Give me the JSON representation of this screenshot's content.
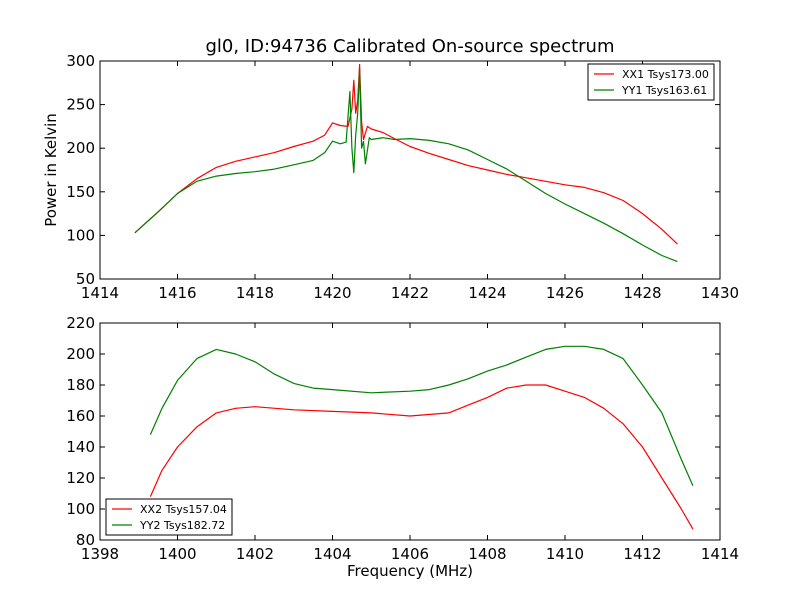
{
  "figure": {
    "title": "gl0, ID:94736 Calibrated On-source spectrum"
  },
  "chart_data": [
    {
      "type": "line",
      "ylabel": "Power in Kelvin",
      "xlabel": "",
      "xlim": [
        1414,
        1430
      ],
      "ylim": [
        50,
        300
      ],
      "xticks": [
        1414,
        1416,
        1418,
        1420,
        1422,
        1424,
        1426,
        1428,
        1430
      ],
      "yticks": [
        50,
        100,
        150,
        200,
        250,
        300
      ],
      "legend_position": "top-right",
      "series": [
        {
          "name": "XX1 Tsys173.00",
          "color": "#ff0000",
          "x": [
            1414.9,
            1415.2,
            1415.5,
            1416.0,
            1416.5,
            1417.0,
            1417.5,
            1418.0,
            1418.5,
            1419.0,
            1419.5,
            1419.8,
            1420.0,
            1420.2,
            1420.4,
            1420.5,
            1420.55,
            1420.6,
            1420.65,
            1420.7,
            1420.75,
            1420.8,
            1420.9,
            1421.0,
            1421.3,
            1421.6,
            1422.0,
            1422.5,
            1423.0,
            1423.5,
            1424.0,
            1424.5,
            1425.0,
            1425.5,
            1426.0,
            1426.5,
            1427.0,
            1427.5,
            1428.0,
            1428.5,
            1428.9
          ],
          "values": [
            103,
            115,
            127,
            148,
            165,
            178,
            185,
            190,
            195,
            202,
            208,
            215,
            229,
            226,
            225,
            245,
            278,
            240,
            255,
            296,
            230,
            210,
            225,
            222,
            218,
            211,
            202,
            194,
            187,
            180,
            175,
            170,
            166,
            162,
            158,
            155,
            149,
            140,
            125,
            107,
            90
          ]
        },
        {
          "name": "YY1 Tsys163.61",
          "color": "#008000",
          "x": [
            1414.9,
            1415.2,
            1415.5,
            1416.0,
            1416.5,
            1417.0,
            1417.5,
            1418.0,
            1418.5,
            1419.0,
            1419.5,
            1419.8,
            1420.0,
            1420.2,
            1420.35,
            1420.45,
            1420.5,
            1420.55,
            1420.6,
            1420.65,
            1420.7,
            1420.75,
            1420.8,
            1420.85,
            1420.95,
            1421.0,
            1421.3,
            1421.6,
            1422.0,
            1422.5,
            1423.0,
            1423.5,
            1424.0,
            1424.5,
            1425.0,
            1425.5,
            1426.0,
            1426.5,
            1427.0,
            1427.5,
            1428.0,
            1428.5,
            1428.9
          ],
          "values": [
            103,
            115,
            127,
            148,
            162,
            168,
            171,
            173,
            176,
            181,
            186,
            195,
            208,
            205,
            207,
            265,
            200,
            172,
            215,
            240,
            290,
            200,
            208,
            182,
            212,
            210,
            212,
            210,
            211,
            209,
            205,
            198,
            187,
            176,
            162,
            148,
            136,
            125,
            114,
            102,
            89,
            77,
            70
          ]
        }
      ]
    },
    {
      "type": "line",
      "ylabel": "",
      "xlabel": "Frequency (MHz)",
      "xlim": [
        1398,
        1414
      ],
      "ylim": [
        80,
        220
      ],
      "xticks": [
        1398,
        1400,
        1402,
        1404,
        1406,
        1408,
        1410,
        1412,
        1414
      ],
      "yticks": [
        80,
        100,
        120,
        140,
        160,
        180,
        200,
        220
      ],
      "legend_position": "bottom-left",
      "series": [
        {
          "name": "XX2 Tsys157.04",
          "color": "#ff0000",
          "x": [
            1399.3,
            1399.6,
            1400.0,
            1400.5,
            1401.0,
            1401.5,
            1402.0,
            1403.0,
            1404.0,
            1405.0,
            1406.0,
            1407.0,
            1407.5,
            1408.0,
            1408.5,
            1409.0,
            1409.5,
            1410.0,
            1410.5,
            1411.0,
            1411.5,
            1412.0,
            1412.5,
            1413.0,
            1413.3
          ],
          "values": [
            108,
            125,
            140,
            153,
            162,
            165,
            166,
            164,
            163,
            162,
            160,
            162,
            167,
            172,
            178,
            180,
            180,
            176,
            172,
            165,
            155,
            140,
            120,
            100,
            87
          ]
        },
        {
          "name": "YY2 Tsys182.72",
          "color": "#008000",
          "x": [
            1399.3,
            1399.6,
            1400.0,
            1400.5,
            1401.0,
            1401.5,
            1402.0,
            1402.5,
            1403.0,
            1403.5,
            1404.0,
            1405.0,
            1406.0,
            1406.5,
            1407.0,
            1407.5,
            1408.0,
            1408.5,
            1409.0,
            1409.5,
            1410.0,
            1410.5,
            1411.0,
            1411.5,
            1412.0,
            1412.5,
            1413.0,
            1413.3
          ],
          "values": [
            148,
            165,
            183,
            197,
            203,
            200,
            195,
            187,
            181,
            178,
            177,
            175,
            176,
            177,
            180,
            184,
            189,
            193,
            198,
            203,
            205,
            205,
            203,
            197,
            180,
            162,
            132,
            115
          ]
        }
      ]
    }
  ]
}
